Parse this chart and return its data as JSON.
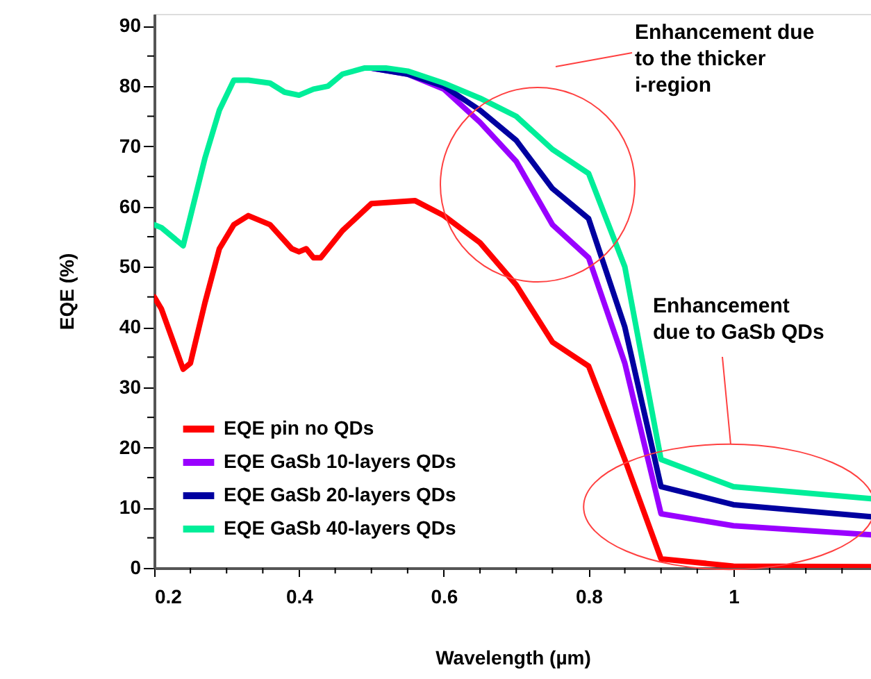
{
  "chart_data": {
    "type": "line",
    "xlabel": "Wavelength (µm)",
    "ylabel": "EQE (%)",
    "xlim": [
      0.2,
      1.19
    ],
    "ylim": [
      0,
      92
    ],
    "xticks": [
      {
        "value": 0.2,
        "label": "0.2"
      },
      {
        "value": 0.25,
        "label": null
      },
      {
        "value": 0.3,
        "label": null
      },
      {
        "value": 0.35,
        "label": null
      },
      {
        "value": 0.4,
        "label": "0.4"
      },
      {
        "value": 0.45,
        "label": null
      },
      {
        "value": 0.5,
        "label": null
      },
      {
        "value": 0.55,
        "label": null
      },
      {
        "value": 0.6,
        "label": "0.6"
      },
      {
        "value": 0.65,
        "label": null
      },
      {
        "value": 0.7,
        "label": null
      },
      {
        "value": 0.75,
        "label": null
      },
      {
        "value": 0.8,
        "label": "0.8"
      },
      {
        "value": 0.85,
        "label": null
      },
      {
        "value": 0.9,
        "label": null
      },
      {
        "value": 0.95,
        "label": null
      },
      {
        "value": 1,
        "label": "1"
      },
      {
        "value": 1.05,
        "label": null
      },
      {
        "value": 1.1,
        "label": null
      },
      {
        "value": 1.15,
        "label": null
      }
    ],
    "yticks": [
      0,
      {
        "value": 5,
        "label": null
      },
      10,
      {
        "value": 15,
        "label": null
      },
      20,
      {
        "value": 25,
        "label": null
      },
      30,
      {
        "value": 35,
        "label": null
      },
      40,
      {
        "value": 45,
        "label": null
      },
      50,
      {
        "value": 55,
        "label": null
      },
      60,
      {
        "value": 65,
        "label": null
      },
      70,
      {
        "value": 75,
        "label": null
      },
      80,
      {
        "value": 85,
        "label": null
      },
      90
    ],
    "grid": false,
    "legend": "bottom left",
    "line_style": "solid",
    "marker": "none",
    "series": [
      {
        "name": "EQE pin no QDs",
        "color": "#ff0000",
        "x": [
          0.2,
          0.21,
          0.24,
          0.25,
          0.27,
          0.29,
          0.31,
          0.33,
          0.36,
          0.39,
          0.4,
          0.41,
          0.42,
          0.43,
          0.46,
          0.5,
          0.56,
          0.6,
          0.65,
          0.7,
          0.75,
          0.8,
          0.85,
          0.9,
          1.0,
          1.19
        ],
        "values": [
          45,
          43,
          33,
          34,
          44,
          53,
          57,
          58.5,
          57,
          53,
          52.5,
          53,
          51.5,
          51.5,
          56,
          60.5,
          61,
          58.5,
          54,
          47,
          37.5,
          33.5,
          18,
          1.5,
          0.3,
          0.2
        ]
      },
      {
        "name": "EQE GaSb 10-layers QDs",
        "color": "#9900ff",
        "x": [
          0.5,
          0.55,
          0.6,
          0.65,
          0.7,
          0.75,
          0.8,
          0.85,
          0.9,
          1.0,
          1.19
        ],
        "values": [
          83,
          82,
          79.5,
          74,
          67.5,
          57,
          51.5,
          34,
          9,
          7,
          5.5
        ]
      },
      {
        "name": "EQE GaSb 20-layers QDs",
        "color": "#0000a0",
        "x": [
          0.5,
          0.55,
          0.6,
          0.65,
          0.7,
          0.75,
          0.8,
          0.85,
          0.9,
          1.0,
          1.19
        ],
        "values": [
          83,
          82,
          80,
          76,
          71,
          63,
          58,
          40,
          13.5,
          10.5,
          8.5
        ]
      },
      {
        "name": "EQE GaSb 40-layers QDs",
        "color": "#00ee99",
        "x": [
          0.2,
          0.21,
          0.24,
          0.27,
          0.29,
          0.31,
          0.33,
          0.36,
          0.38,
          0.4,
          0.42,
          0.44,
          0.46,
          0.49,
          0.52,
          0.55,
          0.6,
          0.65,
          0.7,
          0.75,
          0.8,
          0.85,
          0.9,
          1.0,
          1.19
        ],
        "values": [
          57,
          56.5,
          53.5,
          68,
          76,
          81,
          81,
          80.5,
          79,
          78.5,
          79.5,
          80,
          82,
          83,
          83,
          82.5,
          80.5,
          78,
          75,
          69.5,
          65.5,
          50,
          18,
          13.5,
          11.5
        ]
      }
    ],
    "annotations": [
      "Enhancement due\nto the thicker\ni-region",
      "Enhancement\ndue to GaSb QDs"
    ]
  }
}
